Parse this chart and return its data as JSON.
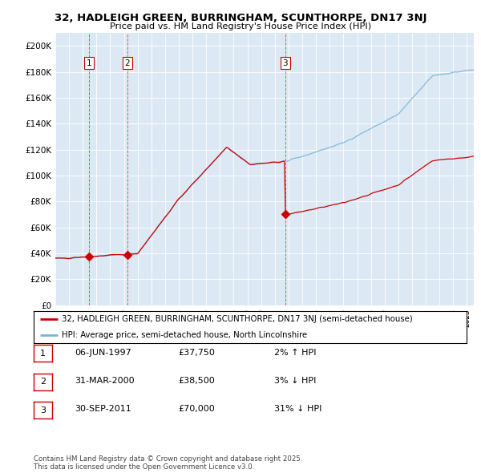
{
  "title": "32, HADLEIGH GREEN, BURRINGHAM, SCUNTHORPE, DN17 3NJ",
  "subtitle": "Price paid vs. HM Land Registry's House Price Index (HPI)",
  "background_color": "#ffffff",
  "plot_bg_color": "#dce9f5",
  "ylim": [
    0,
    210000
  ],
  "yticks": [
    0,
    20000,
    40000,
    60000,
    80000,
    100000,
    120000,
    140000,
    160000,
    180000,
    200000
  ],
  "ytick_labels": [
    "£0",
    "£20K",
    "£40K",
    "£60K",
    "£80K",
    "£100K",
    "£120K",
    "£140K",
    "£160K",
    "£180K",
    "£200K"
  ],
  "hpi_color": "#7ab3d4",
  "price_color": "#cc0000",
  "vline_color": "#cc0000",
  "sale_marker_color": "#cc0000",
  "purchases": [
    {
      "date_num": 1997.44,
      "price": 37750,
      "label": "1"
    },
    {
      "date_num": 2000.25,
      "price": 38500,
      "label": "2"
    },
    {
      "date_num": 2011.75,
      "price": 70000,
      "label": "3"
    }
  ],
  "legend_label_red": "32, HADLEIGH GREEN, BURRINGHAM, SCUNTHORPE, DN17 3NJ (semi-detached house)",
  "legend_label_blue": "HPI: Average price, semi-detached house, North Lincolnshire",
  "table_data": [
    [
      "1",
      "06-JUN-1997",
      "£37,750",
      "2% ↑ HPI"
    ],
    [
      "2",
      "31-MAR-2000",
      "£38,500",
      "3% ↓ HPI"
    ],
    [
      "3",
      "30-SEP-2011",
      "£70,000",
      "31% ↓ HPI"
    ]
  ],
  "footer": "Contains HM Land Registry data © Crown copyright and database right 2025.\nThis data is licensed under the Open Government Licence v3.0.",
  "xmin": 1995.0,
  "xmax": 2025.5
}
